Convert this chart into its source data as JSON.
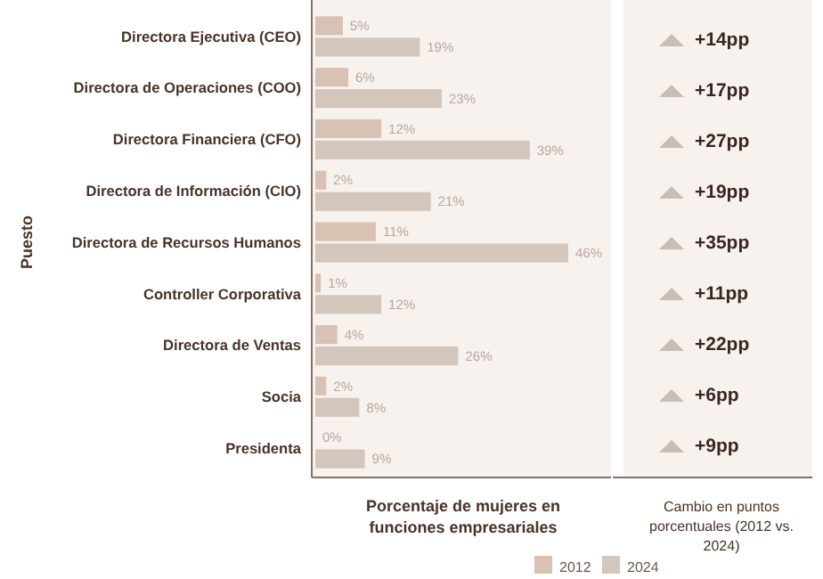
{
  "chart_data": [
    {
      "type": "bar",
      "orientation": "horizontal",
      "ylabel": "Puesto",
      "xlabel": "Porcentaje de mujeres en funciones empresariales",
      "categories": [
        "Directora Ejecutiva (CEO)",
        "Directora de Operaciones (COO)",
        "Directora Financiera (CFO)",
        "Directora de Información (CIO)",
        "Directora de Recursos Humanos",
        "Controller Corporativa",
        "Directora de Ventas",
        "Socia",
        "Presidenta"
      ],
      "series": [
        {
          "name": "2012",
          "color": "#d9c2b3",
          "values": [
            5,
            6,
            12,
            2,
            11,
            1,
            4,
            2,
            0
          ],
          "value_labels": [
            "5%",
            "6%",
            "12%",
            "2%",
            "11%",
            "1%",
            "4%",
            "2%",
            "0%"
          ]
        },
        {
          "name": "2024",
          "color": "#d3c6bd",
          "values": [
            19,
            23,
            39,
            21,
            46,
            12,
            26,
            8,
            9
          ],
          "value_labels": [
            "19%",
            "23%",
            "39%",
            "21%",
            "46%",
            "12%",
            "26%",
            "8%",
            "9%"
          ]
        }
      ],
      "tick_labels": "y",
      "grid": false,
      "legend": "bottom right"
    },
    {
      "type": "other",
      "title": "Cambio en puntos porcentuales (2012 vs. 2024)",
      "annotations": [
        "+14pp",
        "+17pp",
        "+27pp",
        "+19pp",
        "+35pp",
        "+11pp",
        "+22pp",
        "+6pp",
        "+9pp"
      ]
    }
  ]
}
